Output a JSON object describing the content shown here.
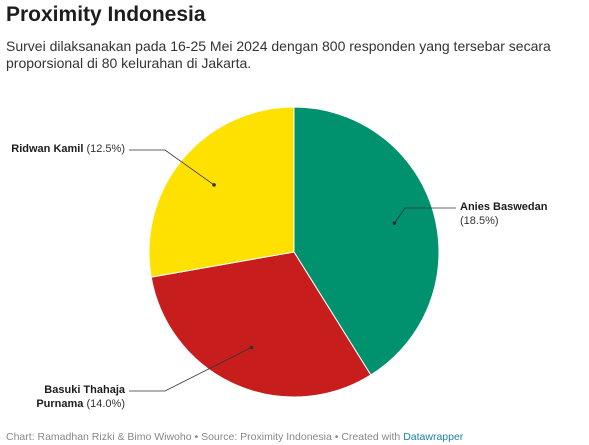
{
  "chart_data": {
    "type": "pie",
    "title": "Proximity Indonesia",
    "subtitle": "Survei dilaksanakan pada 16-25 Mei 2024 dengan 800 responden yang tersebar secara proporsional di 80 kelurahan di Jakarta.",
    "categories": [
      "Anies Baswedan",
      "Basuki Thahaja Purnama",
      "Ridwan Kamil"
    ],
    "values": [
      18.5,
      14.0,
      12.5
    ],
    "value_labels": [
      "(18.5%)",
      "(14.0%)",
      "(12.5%)"
    ],
    "colors": [
      "#00916e",
      "#c71e1d",
      "#ffe100"
    ],
    "footer": "Chart: Ramadhan Rizki & Bimo Wiwoho • Source: Proximity Indonesia • Created with",
    "footer_link": "Datawrapper"
  }
}
